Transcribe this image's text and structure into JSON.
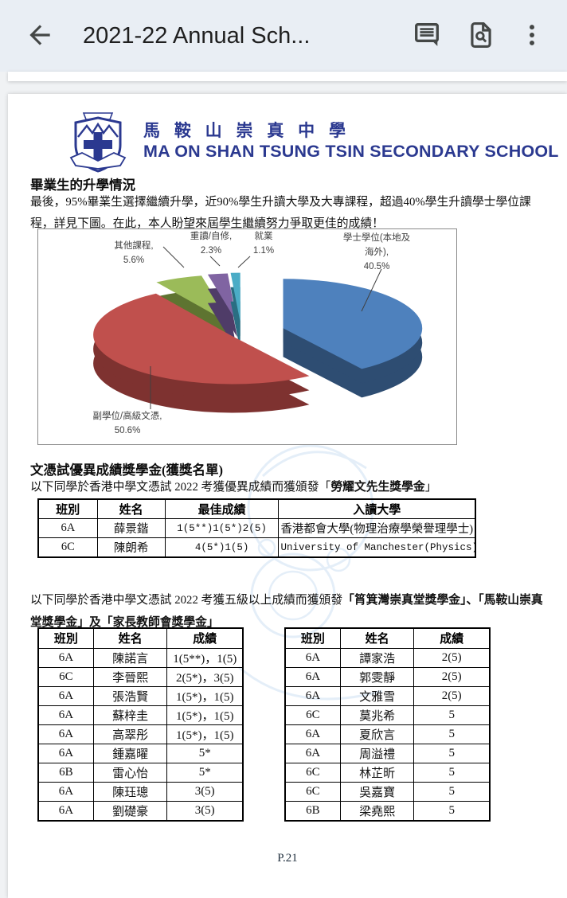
{
  "app_bar": {
    "title": "2021-22 Annual Sch...",
    "back_label": "back",
    "comment_label": "comments",
    "find_label": "find in document",
    "more_label": "more options"
  },
  "document": {
    "school": {
      "name_zh": "馬 鞍 山 崇 真 中 學",
      "name_en": "MA ON SHAN TSUNG TSIN SECONDARY SCHOOL"
    },
    "section1": {
      "heading": "畢業生的升學情況",
      "paragraph": "最後，95%畢業生選擇繼續升學，近90%學生升讀大學及大專課程，超過40%學生升讀學士學位課程，詳見下圖。在此，本人盼望來屆學生繼續努力爭取更佳的成績！"
    },
    "section2": {
      "heading": "文憑試優異成績獎學金(獲獎名單)",
      "intro_prefix": "以下同學於香港中學文憑試 2022 考獲優異成績而獲頒發「",
      "intro_bold": "勞耀文先生獎學金",
      "intro_suffix": "」",
      "table": {
        "headers": [
          "班別",
          "姓名",
          "最佳成績",
          "入讀大學"
        ],
        "rows": [
          [
            "6A",
            "薛景鍇",
            "1(5**)1(5*)2(5)",
            "香港都會大學(物理治療學榮譽理學士)"
          ],
          [
            "6C",
            "陳朗希",
            "4(5*)1(5)",
            "University of Manchester(Physics)"
          ]
        ]
      }
    },
    "section3": {
      "intro_prefix": "以下同學於香港中學文憑試 2022 考獲五級以上成績而獲頒發",
      "intro_bold": "「筲箕灣崇真堂獎學金」、「馬鞍山崇真堂獎學金」及「家長教師會獎學金」",
      "intro_suffix": "",
      "left_table": {
        "headers": [
          "班別",
          "姓名",
          "成績"
        ],
        "rows": [
          [
            "6A",
            "陳諾言",
            "1(5**)，1(5)"
          ],
          [
            "6C",
            "李晉熙",
            "2(5*)，3(5)"
          ],
          [
            "6A",
            "張浩賢",
            "1(5*)，1(5)"
          ],
          [
            "6A",
            "蘇梓圭",
            "1(5*)，1(5)"
          ],
          [
            "6A",
            "高翠彤",
            "1(5*)，1(5)"
          ],
          [
            "6A",
            "鍾嘉曜",
            "5*"
          ],
          [
            "6B",
            "雷心怡",
            "5*"
          ],
          [
            "6A",
            "陳珏璁",
            "3(5)"
          ],
          [
            "6A",
            "劉礎豪",
            "3(5)"
          ]
        ]
      },
      "right_table": {
        "headers": [
          "班別",
          "姓名",
          "成績"
        ],
        "rows": [
          [
            "6A",
            "譚家浩",
            "2(5)"
          ],
          [
            "6A",
            "郭雯靜",
            "2(5)"
          ],
          [
            "6A",
            "文雅雪",
            "2(5)"
          ],
          [
            "6C",
            "莫兆希",
            "5"
          ],
          [
            "6A",
            "夏欣言",
            "5"
          ],
          [
            "6A",
            "周溢禮",
            "5"
          ],
          [
            "6C",
            "林芷昕",
            "5"
          ],
          [
            "6C",
            "吳嘉寶",
            "5"
          ],
          [
            "6B",
            "梁堯熙",
            "5"
          ]
        ]
      }
    },
    "page_number": "P.21"
  },
  "chart_data": {
    "type": "pie",
    "style": "3d-exploded",
    "start_angle": "top",
    "direction": "clockwise",
    "legend": "none",
    "slices": [
      {
        "id": "bachelor-degree",
        "label": "學士學位(本地及海外)",
        "value": 40.5,
        "color": "#4E81BD",
        "side_color": "#2E4D72",
        "data_label_lines": [
          "學士學位(本地及",
          "海外),",
          "40.5%"
        ]
      },
      {
        "id": "sub-degree",
        "label": "副學位/高級文憑",
        "value": 50.6,
        "color": "#C0504D",
        "side_color": "#7E3230",
        "data_label_lines": [
          "副學位/高級文憑,",
          "50.6%"
        ]
      },
      {
        "id": "other-courses",
        "label": "其他課程",
        "value": 5.6,
        "color": "#9BBB59",
        "side_color": "#5E7431",
        "data_label_lines": [
          "其他課程,",
          "5.6%"
        ]
      },
      {
        "id": "repeat-self-study",
        "label": "重讀/自修",
        "value": 2.3,
        "color": "#8064A2",
        "side_color": "#4F3C68",
        "data_label_lines": [
          "重讀/自修,",
          "2.3%"
        ]
      },
      {
        "id": "employment",
        "label": "就業",
        "value": 1.1,
        "color": "#4BACC6",
        "side_color": "#2A6E82",
        "data_label_lines": [
          "就業",
          "1.1%"
        ]
      }
    ]
  }
}
